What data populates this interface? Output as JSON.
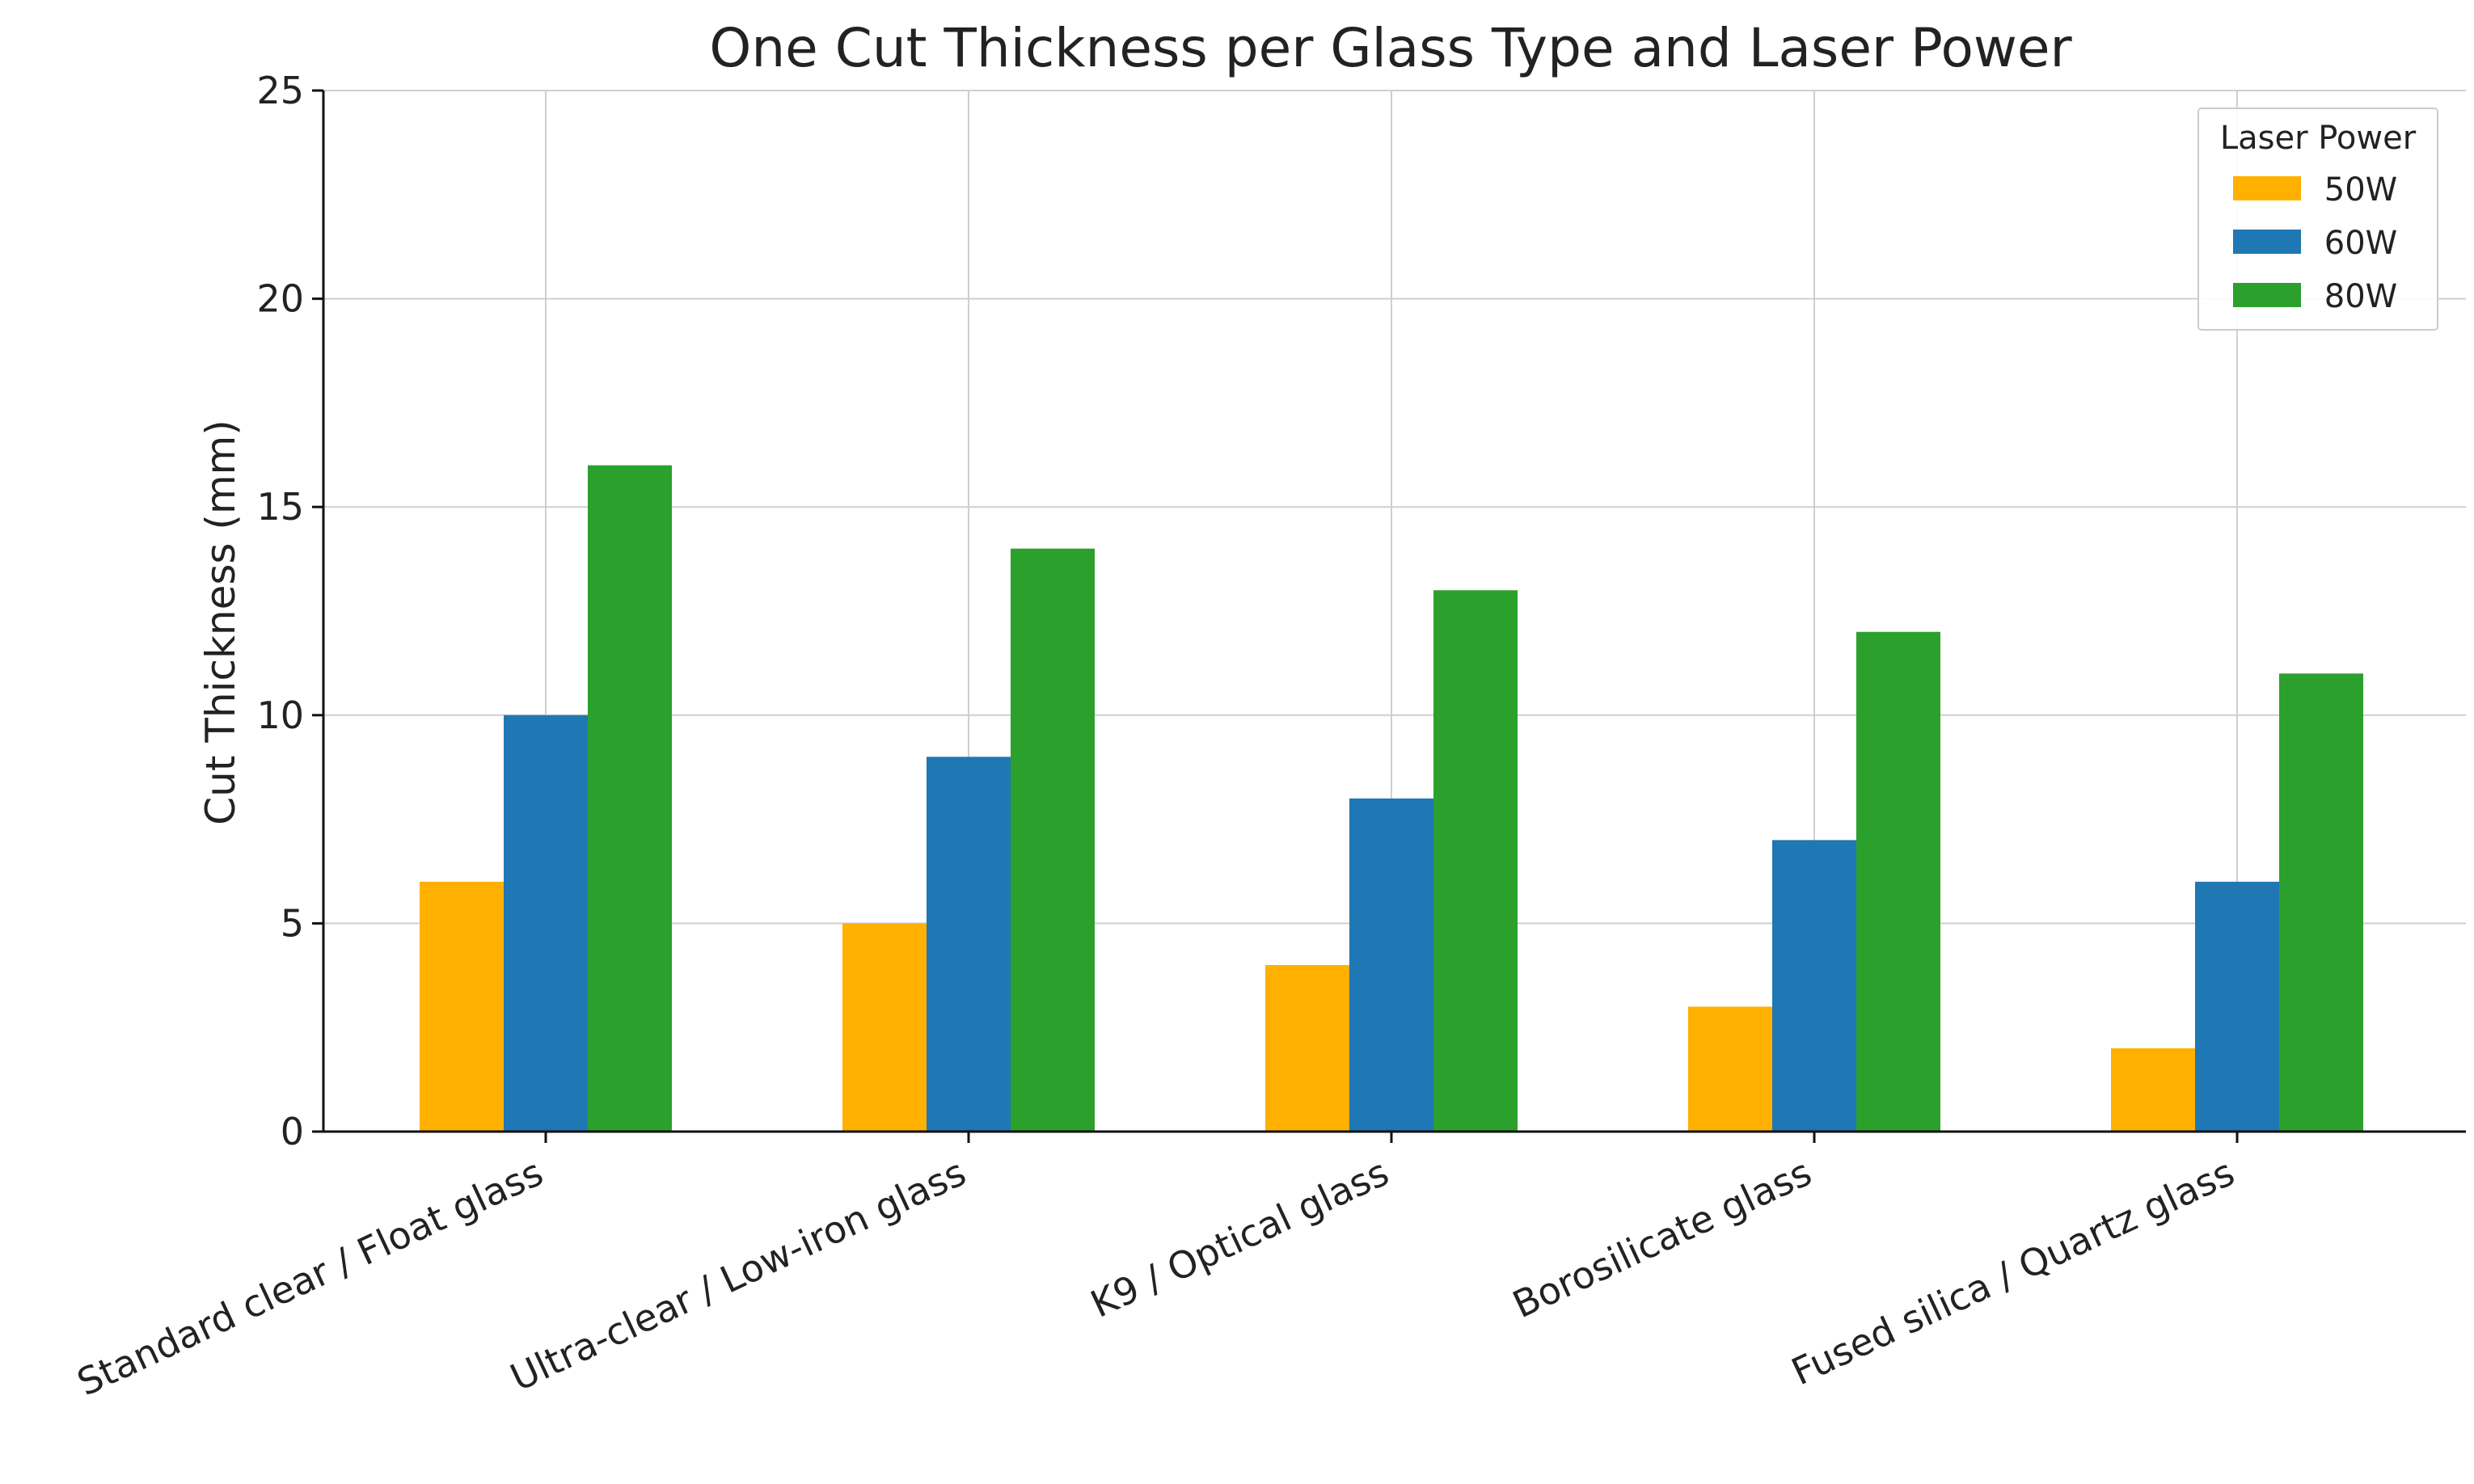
{
  "chart_data": {
    "type": "bar",
    "title": "One Cut Thickness per Glass Type and Laser Power",
    "xlabel": "",
    "ylabel": "Cut Thickness (mm)",
    "ylim": [
      0,
      25
    ],
    "yticks": [
      0,
      5,
      10,
      15,
      20,
      25
    ],
    "categories": [
      "Standard clear / Float glass",
      "Ultra-clear / Low-iron glass",
      "K9 / Optical glass",
      "Borosilicate glass",
      "Fused silica / Quartz glass"
    ],
    "series": [
      {
        "name": "50W",
        "values": [
          6,
          5,
          4,
          3,
          2
        ],
        "color": "#FFB000"
      },
      {
        "name": "60W",
        "values": [
          10,
          9,
          8,
          7,
          6
        ],
        "color": "#1F77B4"
      },
      {
        "name": "80W",
        "values": [
          16,
          14,
          13,
          12,
          11
        ],
        "color": "#2CA02C"
      }
    ],
    "legend": {
      "title": "Laser Power",
      "position": "top-right"
    },
    "grid": true
  }
}
